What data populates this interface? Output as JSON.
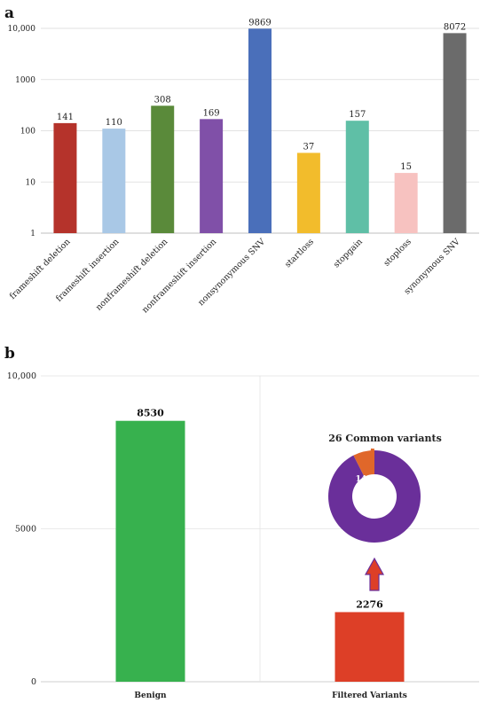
{
  "chart_data": [
    {
      "panel": "a",
      "type": "bar",
      "log_scale": true,
      "ylim": [
        1,
        10000
      ],
      "yticks": [
        "1",
        "10",
        "100",
        "1000",
        "10,000"
      ],
      "grid": true,
      "categories": [
        "frameshift deletion",
        "frameshift insertion",
        "nonframeshift deletion",
        "nonframeshift insertion",
        "nonsynonymous SNV",
        "startloss",
        "stopgain",
        "stoploss",
        "synonymous SNV"
      ],
      "values": [
        141,
        110,
        308,
        169,
        9869,
        37,
        157,
        15,
        8072
      ],
      "value_labels": [
        "141",
        "110",
        "308",
        "169",
        "9869",
        "37",
        "157",
        "15",
        "8072"
      ],
      "colors": [
        "#b5332b",
        "#a9c8e6",
        "#5a8a3a",
        "#8050a8",
        "#4a6fba",
        "#f2bc2c",
        "#5fbfa6",
        "#f7c2c0",
        "#6b6b6b"
      ]
    },
    {
      "panel": "b",
      "type": "bar",
      "ylim": [
        0,
        10000
      ],
      "yticks": [
        "0",
        "5000",
        "10,000"
      ],
      "grid": true,
      "categories": [
        "Benign",
        "Filtered Variants"
      ],
      "values": [
        8530,
        2276
      ],
      "value_labels": [
        "8530",
        "2276"
      ],
      "colors": [
        "#37b14e",
        "#dd3f27"
      ],
      "inset": {
        "type": "pie",
        "style": "donut",
        "values": [
          141,
          2135
        ],
        "colors": [
          "#e0672a",
          "#6a2f9a"
        ],
        "slice_label": "141",
        "annotation": "26 Common variants"
      }
    }
  ]
}
